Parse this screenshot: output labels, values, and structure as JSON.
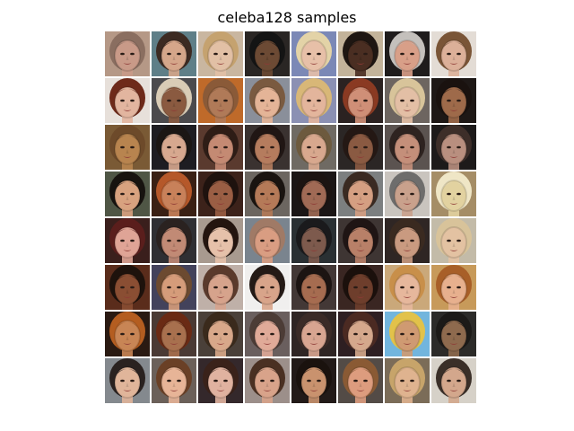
{
  "figure": {
    "title": "celeba128 samples"
  },
  "grid": {
    "rows": 8,
    "cols": 8,
    "tiles": [
      {
        "bg": "#b59886",
        "skin": "#c99a88",
        "hair": "#8a6e60"
      },
      {
        "bg": "#5f7f88",
        "skin": "#d5a68a",
        "hair": "#3c2a22"
      },
      {
        "bg": "#c9b6a0",
        "skin": "#e2c0a5",
        "hair": "#c5a26f"
      },
      {
        "bg": "#2a2624",
        "skin": "#6c4a34",
        "hair": "#141414"
      },
      {
        "bg": "#7b88b6",
        "skin": "#e7c0a8",
        "hair": "#e3d3a7"
      },
      {
        "bg": "#c3b39a",
        "skin": "#4a2e22",
        "hair": "#1e1612"
      },
      {
        "bg": "#1f1c1c",
        "skin": "#d89f88",
        "hair": "#c4c0bc"
      },
      {
        "bg": "#e3dcd5",
        "skin": "#dcb099",
        "hair": "#7a5537"
      },
      {
        "bg": "#e7e0da",
        "skin": "#e2b59f",
        "hair": "#6e2a1a"
      },
      {
        "bg": "#4b4a4d",
        "skin": "#8a5a40",
        "hair": "#d9ccb6"
      },
      {
        "bg": "#bf6a2a",
        "skin": "#b07a58",
        "hair": "#8a5a38"
      },
      {
        "bg": "#8a8f9a",
        "skin": "#e4b497",
        "hair": "#7a5a40"
      },
      {
        "bg": "#8b90b3",
        "skin": "#e3b59c",
        "hair": "#d8b777"
      },
      {
        "bg": "#2b2221",
        "skin": "#cf8f77",
        "hair": "#8a3a22"
      },
      {
        "bg": "#6d6560",
        "skin": "#e3bfa5",
        "hair": "#d8c49a"
      },
      {
        "bg": "#1e1816",
        "skin": "#9e6a4a",
        "hair": "#1a120f"
      },
      {
        "bg": "#7a5a35",
        "skin": "#b8844f",
        "hair": "#6d4a2a"
      },
      {
        "bg": "#1e1d22",
        "skin": "#d7a88f",
        "hair": "#1b1614"
      },
      {
        "bg": "#5a3a2e",
        "skin": "#c48a73",
        "hair": "#2e1d16"
      },
      {
        "bg": "#3a3230",
        "skin": "#b57c5e",
        "hair": "#201614"
      },
      {
        "bg": "#6f6a63",
        "skin": "#d8a88e",
        "hair": "#6d5a3e"
      },
      {
        "bg": "#2b2625",
        "skin": "#8a5a42",
        "hair": "#241814"
      },
      {
        "bg": "#5b5350",
        "skin": "#c48f7a",
        "hair": "#2e2320"
      },
      {
        "bg": "#1d1a1a",
        "skin": "#b98f7f",
        "hair": "#3d2e29"
      },
      {
        "bg": "#4f5645",
        "skin": "#d8a27f",
        "hair": "#17130f"
      },
      {
        "bg": "#3a2014",
        "skin": "#c8815a",
        "hair": "#b5582a"
      },
      {
        "bg": "#3c221a",
        "skin": "#9a5e44",
        "hair": "#1e120e"
      },
      {
        "bg": "#6c6660",
        "skin": "#b57a58",
        "hair": "#1a1410"
      },
      {
        "bg": "#1b1616",
        "skin": "#a06a55",
        "hair": "#1c1412"
      },
      {
        "bg": "#7c7f80",
        "skin": "#d59f82",
        "hair": "#3a2a22"
      },
      {
        "bg": "#c9c4be",
        "skin": "#c9a18c",
        "hair": "#6e6d6c"
      },
      {
        "bg": "#a58d66",
        "skin": "#e2d2a0",
        "hair": "#efe6c6"
      },
      {
        "bg": "#3a1f1c",
        "skin": "#dfa496",
        "hair": "#5a1e1c"
      },
      {
        "bg": "#2f2f33",
        "skin": "#c18a75",
        "hair": "#2a2220"
      },
      {
        "bg": "#a89a8f",
        "skin": "#e6c1aa",
        "hair": "#24150f"
      },
      {
        "bg": "#7a848e",
        "skin": "#d99d82",
        "hair": "#a07a66"
      },
      {
        "bg": "#2a3033",
        "skin": "#7d5a4d",
        "hair": "#1a1a1c"
      },
      {
        "bg": "#3e3533",
        "skin": "#b88068",
        "hair": "#1f1514"
      },
      {
        "bg": "#2f2624",
        "skin": "#c99a80",
        "hair": "#3a2a20"
      },
      {
        "bg": "#c3bba8",
        "skin": "#e3c2a2",
        "hair": "#d8c39a"
      },
      {
        "bg": "#5a2c1b",
        "skin": "#8a4e33",
        "hair": "#1e120c"
      },
      {
        "bg": "#43425b",
        "skin": "#d59c7a",
        "hair": "#6c4a30"
      },
      {
        "bg": "#bfb0a8",
        "skin": "#d6a38c",
        "hair": "#5a3a2c"
      },
      {
        "bg": "#f0efee",
        "skin": "#d8a48a",
        "hair": "#241a16"
      },
      {
        "bg": "#433836",
        "skin": "#a66c50",
        "hair": "#1c1412"
      },
      {
        "bg": "#3a2622",
        "skin": "#6e3e2c",
        "hair": "#1b100c"
      },
      {
        "bg": "#caa87a",
        "skin": "#e6b79c",
        "hair": "#c88f4a"
      },
      {
        "bg": "#c79a5a",
        "skin": "#e7b08e",
        "hair": "#a85f28"
      },
      {
        "bg": "#2a1a12",
        "skin": "#c88555",
        "hair": "#b45d20"
      },
      {
        "bg": "#4a3a34",
        "skin": "#a8704e",
        "hair": "#6a2a14"
      },
      {
        "bg": "#4a4039",
        "skin": "#d8a88a",
        "hair": "#3a2a1c"
      },
      {
        "bg": "#6a5f5e",
        "skin": "#e0aa98",
        "hair": "#4c3c36"
      },
      {
        "bg": "#2f2524",
        "skin": "#d8a591",
        "hair": "#3b2b27"
      },
      {
        "bg": "#2e1f22",
        "skin": "#d5a88c",
        "hair": "#4b2a22"
      },
      {
        "bg": "#72b5dd",
        "skin": "#cf9a72",
        "hair": "#e2c24a"
      },
      {
        "bg": "#2c2b29",
        "skin": "#8e6a4e",
        "hair": "#1c1a18"
      },
      {
        "bg": "#84898e",
        "skin": "#e0b59a",
        "hair": "#2a2220"
      },
      {
        "bg": "#6b6059",
        "skin": "#e7b497",
        "hair": "#6a4026"
      },
      {
        "bg": "#34282b",
        "skin": "#e0b2a0",
        "hair": "#3a221a"
      },
      {
        "bg": "#9c8f8a",
        "skin": "#d8a38a",
        "hair": "#4a3022"
      },
      {
        "bg": "#221a18",
        "skin": "#c9926e",
        "hair": "#1a120e"
      },
      {
        "bg": "#534b46",
        "skin": "#dd9c7e",
        "hair": "#8a5a34"
      },
      {
        "bg": "#7b6c58",
        "skin": "#dfb38f",
        "hair": "#c7a46a"
      },
      {
        "bg": "#d6d1c8",
        "skin": "#d3a78c",
        "hair": "#3a2f28"
      }
    ]
  }
}
